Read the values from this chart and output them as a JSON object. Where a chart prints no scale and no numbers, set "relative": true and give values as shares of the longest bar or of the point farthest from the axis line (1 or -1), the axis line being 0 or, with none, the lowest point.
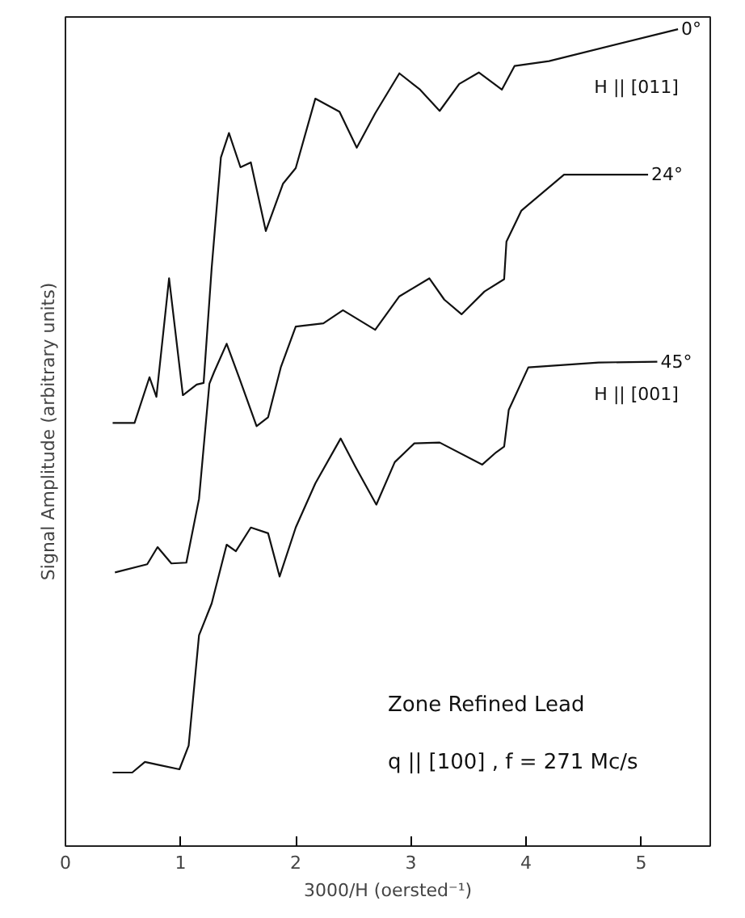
{
  "chart_data": {
    "type": "line",
    "relative": true,
    "xlabel": "3000/H (oersted⁻¹)",
    "ylabel": "Signal Amplitude (arbitrary units)",
    "xlim": [
      0,
      5.6
    ],
    "xticks": [
      0,
      1,
      2,
      3,
      4,
      5
    ],
    "grid": false,
    "marker": "none",
    "line_style": "solid",
    "series": [
      {
        "name": "0°",
        "color": "#111111",
        "x": [
          0.41,
          0.6,
          0.73,
          0.79,
          0.9,
          1.02,
          1.14,
          1.2,
          1.27,
          1.35,
          1.42,
          1.52,
          1.61,
          1.74,
          1.89,
          2.0,
          2.17,
          2.38,
          2.53,
          2.69,
          2.9,
          3.08,
          3.25,
          3.42,
          3.59,
          3.79,
          3.9,
          4.2,
          5.32
        ],
        "values": [
          0.518,
          0.518,
          0.574,
          0.55,
          0.695,
          0.552,
          0.565,
          0.567,
          0.708,
          0.843,
          0.873,
          0.831,
          0.837,
          0.753,
          0.811,
          0.83,
          0.915,
          0.899,
          0.855,
          0.897,
          0.946,
          0.926,
          0.9,
          0.933,
          0.947,
          0.926,
          0.955,
          0.961,
          1.0
        ]
      },
      {
        "name": "24°",
        "color": "#111111",
        "x": [
          0.43,
          0.71,
          0.8,
          0.92,
          1.05,
          1.16,
          1.25,
          1.29,
          1.4,
          1.51,
          1.66,
          1.76,
          1.87,
          2.0,
          2.24,
          2.41,
          2.69,
          2.9,
          3.16,
          3.29,
          3.44,
          3.64,
          3.81,
          3.83,
          3.96,
          4.33,
          5.06
        ],
        "values": [
          0.335,
          0.345,
          0.366,
          0.346,
          0.347,
          0.425,
          0.566,
          0.58,
          0.615,
          0.573,
          0.514,
          0.525,
          0.586,
          0.636,
          0.64,
          0.656,
          0.632,
          0.673,
          0.695,
          0.669,
          0.651,
          0.679,
          0.694,
          0.74,
          0.778,
          0.822,
          0.822
        ]
      },
      {
        "name": "45°",
        "color": "#111111",
        "x": [
          0.41,
          0.58,
          0.69,
          0.82,
          0.99,
          1.07,
          1.16,
          1.27,
          1.4,
          1.48,
          1.61,
          1.76,
          1.86,
          2.0,
          2.17,
          2.39,
          2.52,
          2.7,
          2.86,
          3.03,
          3.25,
          3.62,
          3.74,
          3.81,
          3.85,
          4.02,
          4.63,
          5.14
        ],
        "values": [
          0.09,
          0.09,
          0.103,
          0.099,
          0.094,
          0.123,
          0.258,
          0.297,
          0.369,
          0.361,
          0.39,
          0.383,
          0.33,
          0.39,
          0.444,
          0.499,
          0.464,
          0.418,
          0.47,
          0.493,
          0.494,
          0.467,
          0.482,
          0.489,
          0.534,
          0.586,
          0.592,
          0.593
        ]
      }
    ],
    "annotations": [
      "H || [011]",
      "H || [001]",
      "Zone Refined Lead",
      "q || [100] ,  f = 271 Mc/s"
    ]
  }
}
